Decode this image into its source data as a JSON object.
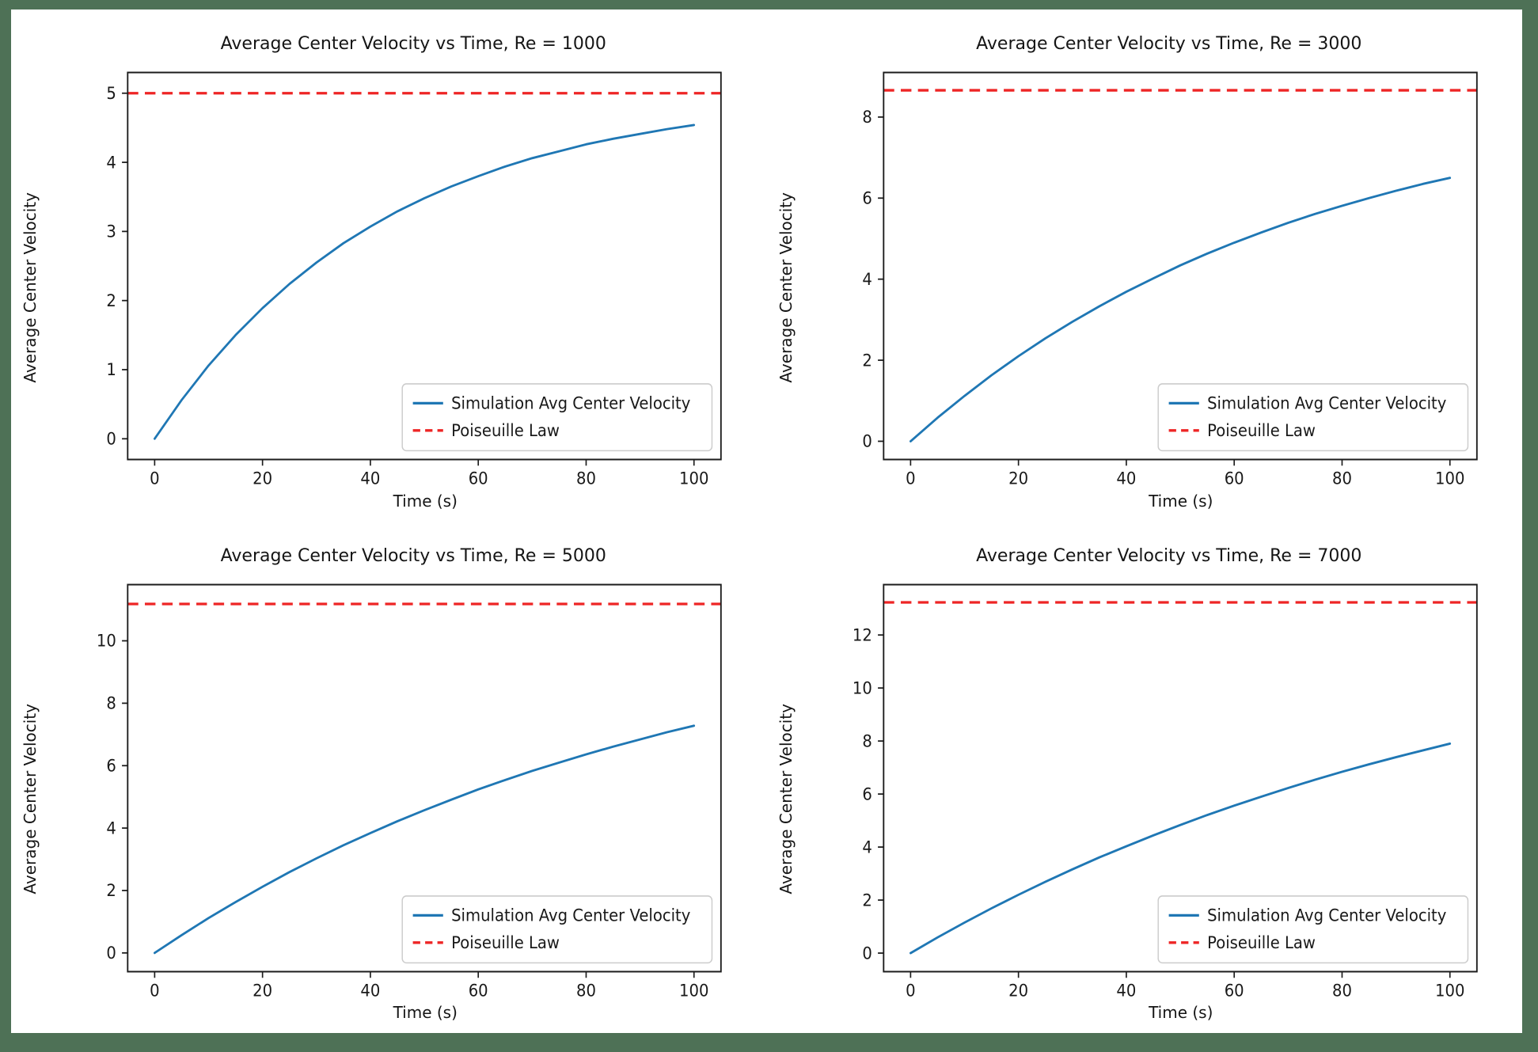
{
  "figure": {
    "outer_frame_color": "#4e7156",
    "background": "#ffffff",
    "text_color": "#191919"
  },
  "palette": {
    "blue": "#1f77b4",
    "red": "#ee2525",
    "axes": "#1c1c1c",
    "legend_border": "#cccccc",
    "legend_fill": "#ffffff"
  },
  "chart_data": [
    {
      "type": "line",
      "title": "Average Center Velocity vs Time, Re = 1000",
      "xlabel": "Time (s)",
      "ylabel": "Average Center Velocity",
      "x": [
        0,
        5,
        10,
        15,
        20,
        25,
        30,
        35,
        40,
        45,
        50,
        55,
        60,
        65,
        70,
        75,
        80,
        85,
        90,
        95,
        100
      ],
      "series": [
        {
          "name": "Simulation Avg Center Velocity",
          "color": "blue",
          "style": "solid",
          "values": [
            0,
            0.56,
            1.06,
            1.5,
            1.89,
            2.24,
            2.55,
            2.83,
            3.07,
            3.29,
            3.48,
            3.65,
            3.8,
            3.94,
            4.06,
            4.16,
            4.26,
            4.34,
            4.41,
            4.48,
            4.54
          ]
        },
        {
          "name": "Poiseuille Law",
          "color": "red",
          "style": "dashed",
          "constant": 5.0
        }
      ],
      "xlim": [
        -5,
        105
      ],
      "ylim": [
        -0.3,
        5.3
      ],
      "xticks": [
        0,
        20,
        40,
        60,
        80,
        100
      ],
      "yticks": [
        0,
        1,
        2,
        3,
        4,
        5
      ],
      "legend_position": "lower right",
      "grid": false
    },
    {
      "type": "line",
      "title": "Average Center Velocity vs Time, Re = 3000",
      "xlabel": "Time (s)",
      "ylabel": "Average Center Velocity",
      "x": [
        0,
        5,
        10,
        15,
        20,
        25,
        30,
        35,
        40,
        45,
        50,
        55,
        60,
        65,
        70,
        75,
        80,
        85,
        90,
        95,
        100
      ],
      "series": [
        {
          "name": "Simulation Avg Center Velocity",
          "color": "blue",
          "style": "solid",
          "values": [
            0,
            0.58,
            1.12,
            1.63,
            2.1,
            2.54,
            2.95,
            3.33,
            3.69,
            4.02,
            4.34,
            4.63,
            4.9,
            5.15,
            5.39,
            5.61,
            5.81,
            6.0,
            6.18,
            6.35,
            6.5
          ]
        },
        {
          "name": "Poiseuille Law",
          "color": "red",
          "style": "dashed",
          "constant": 8.66
        }
      ],
      "xlim": [
        -5,
        105
      ],
      "ylim": [
        -0.45,
        9.1
      ],
      "xticks": [
        0,
        20,
        40,
        60,
        80,
        100
      ],
      "yticks": [
        0,
        2,
        4,
        6,
        8
      ],
      "legend_position": "lower right",
      "grid": false
    },
    {
      "type": "line",
      "title": "Average Center Velocity vs Time, Re = 5000",
      "xlabel": "Time (s)",
      "ylabel": "Average Center Velocity",
      "x": [
        0,
        5,
        10,
        15,
        20,
        25,
        30,
        35,
        40,
        45,
        50,
        55,
        60,
        65,
        70,
        75,
        80,
        85,
        90,
        95,
        100
      ],
      "series": [
        {
          "name": "Simulation Avg Center Velocity",
          "color": "blue",
          "style": "solid",
          "values": [
            0,
            0.57,
            1.12,
            1.63,
            2.12,
            2.59,
            3.03,
            3.45,
            3.84,
            4.22,
            4.57,
            4.91,
            5.24,
            5.54,
            5.83,
            6.1,
            6.36,
            6.61,
            6.84,
            7.07,
            7.28
          ]
        },
        {
          "name": "Poiseuille Law",
          "color": "red",
          "style": "dashed",
          "constant": 11.18
        }
      ],
      "xlim": [
        -5,
        105
      ],
      "ylim": [
        -0.6,
        11.8
      ],
      "xticks": [
        0,
        20,
        40,
        60,
        80,
        100
      ],
      "yticks": [
        0,
        2,
        4,
        6,
        8,
        10
      ],
      "legend_position": "lower right",
      "grid": false
    },
    {
      "type": "line",
      "title": "Average Center Velocity vs Time, Re = 7000",
      "xlabel": "Time (s)",
      "ylabel": "Average Center Velocity",
      "x": [
        0,
        5,
        10,
        15,
        20,
        25,
        30,
        35,
        40,
        45,
        50,
        55,
        60,
        65,
        70,
        75,
        80,
        85,
        90,
        95,
        100
      ],
      "series": [
        {
          "name": "Simulation Avg Center Velocity",
          "color": "blue",
          "style": "solid",
          "values": [
            0,
            0.59,
            1.15,
            1.69,
            2.2,
            2.69,
            3.16,
            3.61,
            4.03,
            4.44,
            4.83,
            5.21,
            5.56,
            5.9,
            6.23,
            6.54,
            6.84,
            7.12,
            7.39,
            7.65,
            7.9
          ]
        },
        {
          "name": "Poiseuille Law",
          "color": "red",
          "style": "dashed",
          "constant": 13.23
        }
      ],
      "xlim": [
        -5,
        105
      ],
      "ylim": [
        -0.7,
        13.9
      ],
      "xticks": [
        0,
        20,
        40,
        60,
        80,
        100
      ],
      "yticks": [
        0,
        2,
        4,
        6,
        8,
        10,
        12
      ],
      "legend_position": "lower right",
      "grid": false
    }
  ]
}
